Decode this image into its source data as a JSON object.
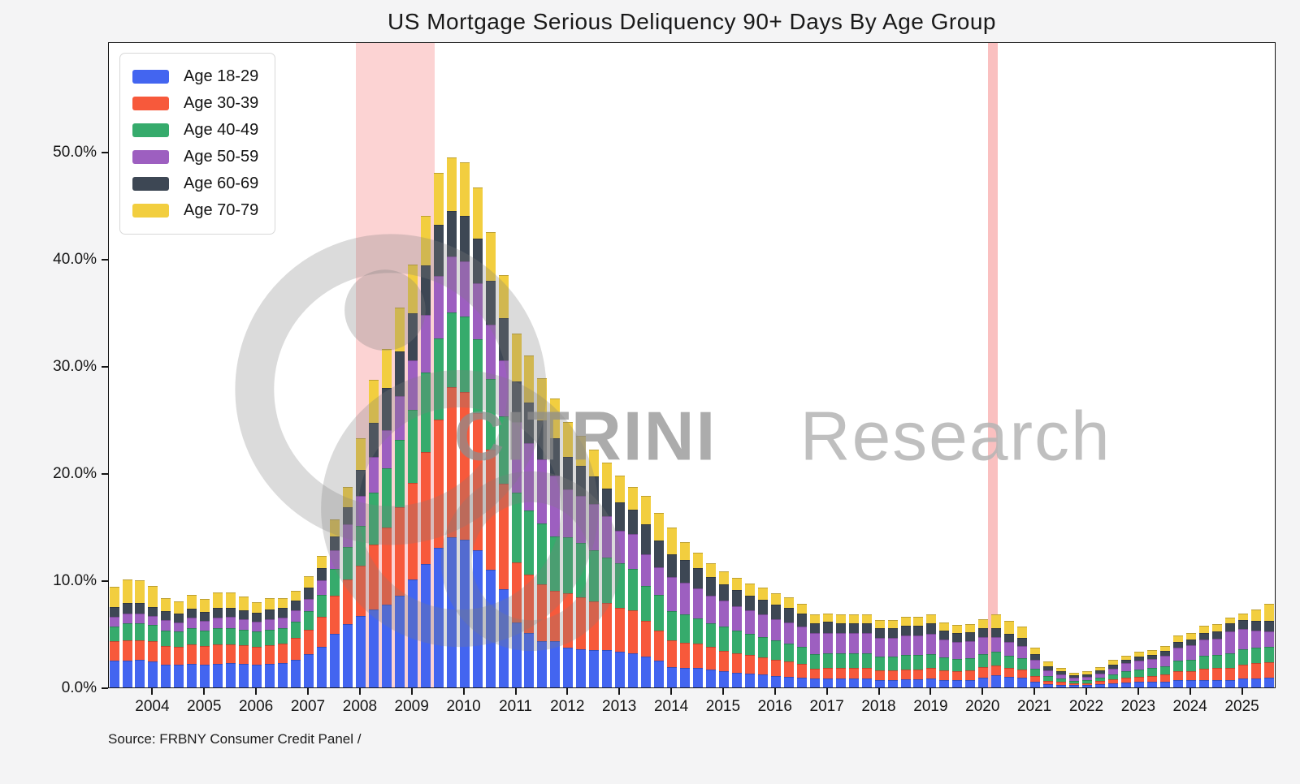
{
  "title": "US Mortgage Serious Deliquency 90+ Days By Age Group",
  "source": "Source: FRBNY Consumer Credit Panel /",
  "watermark": {
    "bold_text": "CITRINI",
    "light_text": "Research"
  },
  "colors": {
    "age_18_29": "#4365f0",
    "age_30_39": "#f7593b",
    "age_40_49": "#36ab6c",
    "age_50_59": "#9d5fc0",
    "age_60_69": "#3d4754",
    "age_70_79": "#f2ce3f",
    "recession_band": "rgba(244,96,96,0.28)",
    "recession_band_narrow": "rgba(243,90,90,0.38)"
  },
  "legend": [
    {
      "label": "Age 18-29",
      "color": "#4365f0"
    },
    {
      "label": "Age 30-39",
      "color": "#f7593b"
    },
    {
      "label": "Age 40-49",
      "color": "#36ab6c"
    },
    {
      "label": "Age 50-59",
      "color": "#9d5fc0"
    },
    {
      "label": "Age 60-69",
      "color": "#3d4754"
    },
    {
      "label": "Age 70-79",
      "color": "#f2ce3f"
    }
  ],
  "y_axis": {
    "tick_values": [
      0,
      10,
      20,
      30,
      40,
      50
    ],
    "tick_labels": [
      "0.0%",
      "10.0%",
      "20.0%",
      "30.0%",
      "40.0%",
      "50.0%"
    ],
    "max": 60.3
  },
  "x_axis": {
    "years": [
      2004,
      2005,
      2006,
      2007,
      2008,
      2009,
      2010,
      2011,
      2012,
      2013,
      2014,
      2015,
      2016,
      2017,
      2018,
      2019,
      2020,
      2021,
      2022,
      2023,
      2024,
      2025
    ]
  },
  "chart_data": {
    "type": "bar",
    "stacked": true,
    "title": "US Mortgage Serious Deliquency 90+ Days By Age Group",
    "xlabel": "",
    "ylabel": "",
    "ylim": [
      0,
      60.3
    ],
    "grid": false,
    "legend_position": "upper-left",
    "units": "percent (stacked sum of age-group 90+ day serious delinquency rates)",
    "x": [
      "2003Q2",
      "2003Q3",
      "2003Q4",
      "2004Q1",
      "2004Q2",
      "2004Q3",
      "2004Q4",
      "2005Q1",
      "2005Q2",
      "2005Q3",
      "2005Q4",
      "2006Q1",
      "2006Q2",
      "2006Q3",
      "2006Q4",
      "2007Q1",
      "2007Q2",
      "2007Q3",
      "2007Q4",
      "2008Q1",
      "2008Q2",
      "2008Q3",
      "2008Q4",
      "2009Q1",
      "2009Q2",
      "2009Q3",
      "2009Q4",
      "2010Q1",
      "2010Q2",
      "2010Q3",
      "2010Q4",
      "2011Q1",
      "2011Q2",
      "2011Q3",
      "2011Q4",
      "2012Q1",
      "2012Q2",
      "2012Q3",
      "2012Q4",
      "2013Q1",
      "2013Q2",
      "2013Q3",
      "2013Q4",
      "2014Q1",
      "2014Q2",
      "2014Q3",
      "2014Q4",
      "2015Q1",
      "2015Q2",
      "2015Q3",
      "2015Q4",
      "2016Q1",
      "2016Q2",
      "2016Q3",
      "2016Q4",
      "2017Q1",
      "2017Q2",
      "2017Q3",
      "2017Q4",
      "2018Q1",
      "2018Q2",
      "2018Q3",
      "2018Q4",
      "2019Q1",
      "2019Q2",
      "2019Q3",
      "2019Q4",
      "2020Q1",
      "2020Q2",
      "2020Q3",
      "2020Q4",
      "2021Q1",
      "2021Q2",
      "2021Q3",
      "2021Q4",
      "2022Q1",
      "2022Q2",
      "2022Q3",
      "2022Q4",
      "2023Q1",
      "2023Q2",
      "2023Q3",
      "2023Q4",
      "2024Q1",
      "2024Q2",
      "2024Q3",
      "2024Q4",
      "2025Q1",
      "2025Q2",
      "2025Q3"
    ],
    "series": [
      {
        "name": "Age 18-29",
        "color": "#4365f0",
        "values": [
          2.5,
          2.5,
          2.6,
          2.4,
          2.1,
          2.1,
          2.2,
          2.1,
          2.2,
          2.25,
          2.2,
          2.1,
          2.2,
          2.3,
          2.6,
          3.1,
          3.8,
          5.0,
          5.9,
          6.7,
          7.3,
          7.7,
          8.6,
          10.1,
          11.5,
          13.0,
          14.0,
          13.8,
          12.8,
          11.0,
          9.2,
          6.1,
          5.1,
          4.3,
          4.3,
          3.7,
          3.6,
          3.5,
          3.5,
          3.3,
          3.2,
          2.9,
          2.5,
          1.9,
          1.8,
          1.8,
          1.7,
          1.5,
          1.4,
          1.3,
          1.2,
          1.1,
          1.0,
          0.9,
          0.8,
          0.8,
          0.8,
          0.8,
          0.8,
          0.7,
          0.7,
          0.75,
          0.75,
          0.8,
          0.7,
          0.65,
          0.7,
          0.9,
          1.15,
          1.0,
          0.9,
          0.55,
          0.3,
          0.25,
          0.2,
          0.2,
          0.27,
          0.37,
          0.45,
          0.5,
          0.5,
          0.55,
          0.65,
          0.65,
          0.7,
          0.7,
          0.7,
          0.8,
          0.85,
          0.9
        ]
      },
      {
        "name": "Age 30-39",
        "color": "#f7593b",
        "values": [
          1.8,
          1.9,
          1.8,
          1.9,
          1.8,
          1.7,
          1.8,
          1.75,
          1.8,
          1.8,
          1.75,
          1.7,
          1.75,
          1.8,
          2.0,
          2.3,
          2.8,
          3.6,
          4.2,
          4.7,
          6.0,
          7.2,
          8.2,
          9.0,
          10.5,
          12.0,
          14.0,
          13.8,
          12.8,
          11.2,
          9.8,
          5.6,
          5.4,
          5.3,
          4.7,
          5.1,
          4.8,
          4.5,
          4.4,
          4.1,
          4.0,
          3.3,
          2.8,
          2.5,
          2.4,
          2.3,
          2.1,
          1.9,
          1.8,
          1.7,
          1.6,
          1.5,
          1.4,
          1.3,
          0.95,
          1.0,
          1.0,
          1.0,
          1.0,
          0.9,
          0.9,
          0.95,
          0.95,
          1.0,
          0.9,
          0.85,
          0.9,
          1.0,
          0.9,
          0.85,
          0.8,
          0.5,
          0.3,
          0.25,
          0.2,
          0.22,
          0.3,
          0.42,
          0.45,
          0.5,
          0.55,
          0.65,
          0.85,
          0.9,
          1.05,
          1.1,
          1.1,
          1.3,
          1.4,
          1.45
        ]
      },
      {
        "name": "Age 40-49",
        "color": "#36ab6c",
        "values": [
          1.4,
          1.6,
          1.6,
          1.5,
          1.4,
          1.4,
          1.5,
          1.45,
          1.5,
          1.5,
          1.45,
          1.4,
          1.45,
          1.45,
          1.55,
          1.7,
          2.0,
          2.5,
          3.0,
          3.65,
          4.9,
          5.6,
          6.3,
          6.8,
          7.4,
          7.6,
          7.0,
          7.0,
          6.9,
          6.6,
          6.3,
          6.5,
          6.0,
          5.7,
          5.1,
          5.2,
          5.1,
          4.8,
          4.2,
          4.2,
          3.9,
          3.3,
          3.3,
          2.7,
          2.6,
          2.3,
          2.2,
          2.3,
          2.1,
          2.0,
          1.9,
          1.8,
          1.7,
          1.6,
          1.35,
          1.4,
          1.35,
          1.35,
          1.35,
          1.25,
          1.25,
          1.3,
          1.3,
          1.3,
          1.2,
          1.15,
          1.15,
          1.2,
          1.25,
          1.1,
          1.0,
          0.7,
          0.45,
          0.32,
          0.25,
          0.27,
          0.33,
          0.45,
          0.6,
          0.7,
          0.75,
          0.8,
          1.0,
          1.05,
          1.2,
          1.25,
          1.4,
          1.45,
          1.45,
          1.45
        ]
      },
      {
        "name": "Age 50-59",
        "color": "#9d5fc0",
        "values": [
          0.9,
          0.9,
          0.9,
          0.9,
          1.0,
          0.9,
          1.0,
          0.95,
          1.05,
          1.05,
          1.0,
          0.95,
          1.0,
          1.0,
          1.05,
          1.2,
          1.4,
          1.7,
          2.1,
          2.85,
          3.3,
          3.5,
          4.1,
          4.6,
          5.4,
          5.8,
          5.2,
          5.2,
          5.2,
          5.1,
          5.2,
          6.6,
          6.3,
          6.0,
          5.7,
          4.5,
          4.4,
          4.3,
          3.9,
          3.0,
          3.2,
          2.9,
          2.6,
          3.2,
          3.0,
          2.8,
          2.6,
          2.4,
          2.3,
          2.2,
          2.1,
          2.0,
          2.0,
          1.9,
          1.95,
          1.9,
          1.9,
          1.9,
          1.9,
          1.8,
          1.8,
          1.85,
          1.85,
          1.9,
          1.7,
          1.6,
          1.6,
          1.6,
          1.4,
          1.3,
          1.2,
          0.85,
          0.55,
          0.42,
          0.3,
          0.32,
          0.4,
          0.52,
          0.75,
          0.8,
          0.85,
          0.95,
          1.2,
          1.3,
          1.5,
          1.5,
          2.0,
          1.9,
          1.6,
          1.4
        ]
      },
      {
        "name": "Age 60-69",
        "color": "#3d4754",
        "values": [
          0.9,
          1.0,
          1.0,
          0.8,
          0.8,
          0.8,
          0.85,
          0.8,
          0.85,
          0.85,
          0.8,
          0.8,
          0.85,
          0.85,
          0.9,
          1.0,
          1.1,
          1.3,
          1.6,
          2.4,
          3.2,
          4.0,
          4.2,
          4.4,
          4.6,
          4.8,
          4.3,
          4.2,
          4.2,
          4.1,
          4.0,
          3.8,
          3.8,
          3.6,
          3.5,
          3.0,
          2.8,
          2.6,
          2.6,
          2.7,
          2.3,
          2.8,
          2.5,
          2.1,
          2.1,
          1.9,
          1.7,
          1.5,
          1.5,
          1.4,
          1.4,
          1.3,
          1.3,
          1.2,
          0.95,
          1.0,
          0.95,
          0.95,
          0.95,
          0.9,
          0.9,
          0.9,
          0.9,
          0.95,
          0.85,
          0.8,
          0.8,
          0.8,
          0.8,
          0.75,
          0.7,
          0.5,
          0.4,
          0.28,
          0.2,
          0.22,
          0.27,
          0.36,
          0.35,
          0.4,
          0.4,
          0.45,
          0.55,
          0.6,
          0.65,
          0.65,
          0.8,
          0.85,
          0.95,
          1.0
        ]
      },
      {
        "name": "Age 70-79",
        "color": "#f2ce3f",
        "values": [
          1.9,
          2.2,
          2.1,
          2.0,
          1.2,
          1.15,
          1.3,
          1.25,
          1.5,
          1.45,
          1.3,
          1.0,
          1.1,
          0.9,
          0.95,
          1.1,
          1.2,
          1.6,
          1.9,
          3.0,
          4.0,
          3.6,
          4.1,
          4.6,
          4.6,
          4.8,
          5.0,
          5.0,
          4.8,
          4.5,
          4.0,
          4.4,
          4.4,
          4.0,
          3.7,
          3.3,
          2.8,
          2.5,
          2.4,
          2.5,
          2.1,
          2.7,
          2.6,
          2.5,
          1.7,
          1.5,
          1.3,
          1.2,
          1.1,
          1.1,
          1.1,
          1.1,
          1.0,
          0.9,
          0.8,
          0.8,
          0.8,
          0.8,
          0.8,
          0.75,
          0.75,
          0.85,
          0.85,
          0.85,
          0.75,
          0.75,
          0.75,
          0.9,
          1.3,
          1.2,
          1.05,
          0.6,
          0.45,
          0.33,
          0.25,
          0.27,
          0.33,
          0.43,
          0.4,
          0.4,
          0.45,
          0.5,
          0.6,
          0.6,
          0.7,
          0.7,
          0.5,
          0.6,
          1.05,
          1.6
        ]
      }
    ],
    "recession_bands": [
      {
        "start_index": 18.6,
        "end_index": 24.7
      },
      {
        "start_index": 67.35,
        "end_index": 68.1
      }
    ]
  }
}
